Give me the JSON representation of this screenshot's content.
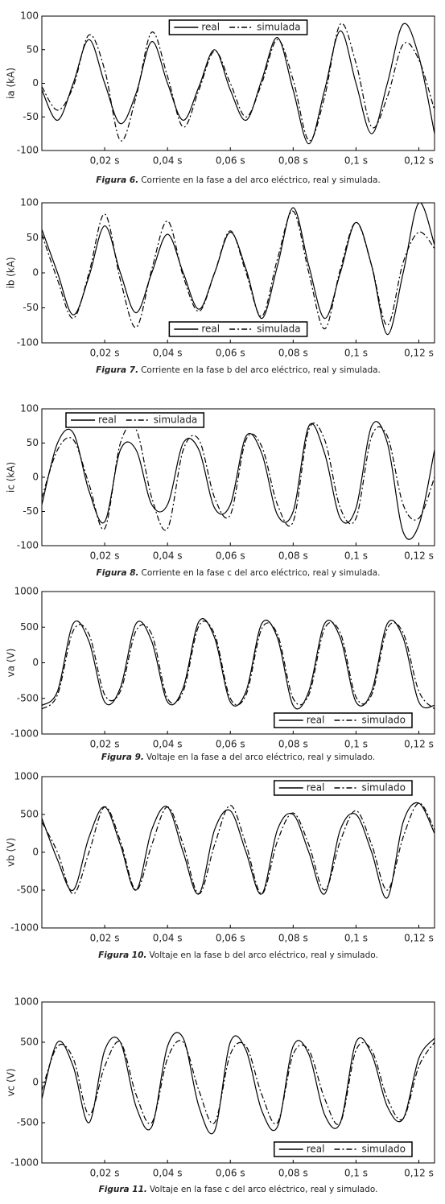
{
  "chart_data": [
    {
      "type": "line",
      "caption_label": "Figura 6.",
      "caption": "Corriente en la fase a del arco eléctrico, real y simulada.",
      "y_label": "ia (kA)",
      "legend": "top",
      "xlim": [
        0,
        0.125
      ],
      "xticks": [
        {
          "value": 0.02,
          "label": "0,02 s"
        },
        {
          "value": 0.04,
          "label": "0,04 s"
        },
        {
          "value": 0.06,
          "label": "0,06 s"
        },
        {
          "value": 0.08,
          "label": "0,08 s"
        },
        {
          "value": 0.1,
          "label": "0,1 s"
        },
        {
          "value": 0.12,
          "label": "0,12 s"
        }
      ],
      "ylim": [
        -100,
        100
      ],
      "yticks": [
        100,
        50,
        0,
        -50,
        -100
      ],
      "x": [
        0,
        0.005,
        0.01,
        0.015,
        0.02,
        0.025,
        0.03,
        0.035,
        0.04,
        0.045,
        0.05,
        0.055,
        0.06,
        0.065,
        0.07,
        0.075,
        0.08,
        0.085,
        0.09,
        0.095,
        0.1,
        0.105,
        0.11,
        0.115,
        0.12,
        0.125
      ],
      "series": [
        {
          "name": "real",
          "color": "#000000",
          "style": "solid",
          "values": [
            -10,
            -55,
            0,
            65,
            0,
            -60,
            -15,
            62,
            0,
            -55,
            -5,
            50,
            -10,
            -55,
            5,
            68,
            -10,
            -90,
            -10,
            78,
            0,
            -75,
            0,
            88,
            40,
            -75
          ]
        },
        {
          "name": "simulada",
          "color": "#000000",
          "style": "dashdot",
          "values": [
            -5,
            -40,
            -5,
            72,
            20,
            -85,
            -20,
            76,
            10,
            -65,
            -10,
            48,
            0,
            -50,
            0,
            65,
            5,
            -85,
            -20,
            88,
            30,
            -65,
            -20,
            58,
            35,
            -40
          ]
        }
      ]
    },
    {
      "type": "line",
      "caption_label": "Figura 7.",
      "caption": "Corriente en la fase b del arco eléctrico, real y simulada.",
      "y_label": "ib (kA)",
      "legend": "bottom",
      "xlim": [
        0,
        0.125
      ],
      "xticks": [
        {
          "value": 0.02,
          "label": "0,02 s"
        },
        {
          "value": 0.04,
          "label": "0,04 s"
        },
        {
          "value": 0.06,
          "label": "0,06 s"
        },
        {
          "value": 0.08,
          "label": "0,08 s"
        },
        {
          "value": 0.1,
          "label": "0,1 s"
        },
        {
          "value": 0.12,
          "label": "0,12 s"
        }
      ],
      "ylim": [
        -100,
        100
      ],
      "yticks": [
        100,
        50,
        0,
        -50,
        -100
      ],
      "x": [
        0,
        0.005,
        0.01,
        0.015,
        0.02,
        0.025,
        0.03,
        0.035,
        0.04,
        0.045,
        0.05,
        0.055,
        0.06,
        0.065,
        0.07,
        0.075,
        0.08,
        0.085,
        0.09,
        0.095,
        0.1,
        0.105,
        0.11,
        0.115,
        0.12,
        0.125
      ],
      "series": [
        {
          "name": "real",
          "color": "#000000",
          "style": "solid",
          "values": [
            62,
            0,
            -60,
            -5,
            67,
            0,
            -57,
            0,
            55,
            0,
            -52,
            0,
            58,
            5,
            -65,
            10,
            93,
            10,
            -65,
            0,
            72,
            10,
            -88,
            0,
            100,
            40
          ]
        },
        {
          "name": "simulada",
          "color": "#000000",
          "style": "dashdot",
          "values": [
            55,
            -10,
            -65,
            0,
            84,
            -10,
            -78,
            5,
            74,
            -5,
            -55,
            0,
            60,
            0,
            -62,
            20,
            88,
            0,
            -80,
            5,
            72,
            10,
            -75,
            15,
            58,
            35
          ]
        }
      ]
    },
    {
      "type": "line",
      "caption_label": "Figura 8.",
      "caption": "Corriente en la fase c del arco eléctrico, real y simulada.",
      "y_label": "ic (kA)",
      "legend": "top-left",
      "xlim": [
        0,
        0.125
      ],
      "xticks": [
        {
          "value": 0.02,
          "label": "0,02 s"
        },
        {
          "value": 0.04,
          "label": "0,04 s"
        },
        {
          "value": 0.06,
          "label": "0,06 s"
        },
        {
          "value": 0.08,
          "label": "0,08 s"
        },
        {
          "value": 0.1,
          "label": "0,1 s"
        },
        {
          "value": 0.12,
          "label": "0,12 s"
        }
      ],
      "ylim": [
        -100,
        100
      ],
      "yticks": [
        100,
        50,
        0,
        -50,
        -100
      ],
      "x": [
        0,
        0.005,
        0.01,
        0.015,
        0.02,
        0.025,
        0.03,
        0.035,
        0.04,
        0.045,
        0.05,
        0.055,
        0.06,
        0.065,
        0.07,
        0.075,
        0.08,
        0.085,
        0.09,
        0.095,
        0.1,
        0.105,
        0.11,
        0.115,
        0.12,
        0.125
      ],
      "series": [
        {
          "name": "real",
          "color": "#000000",
          "style": "solid",
          "values": [
            -40,
            50,
            65,
            -20,
            -65,
            40,
            40,
            -40,
            -40,
            50,
            40,
            -45,
            -40,
            60,
            35,
            -55,
            -50,
            75,
            35,
            -60,
            -45,
            75,
            50,
            -80,
            -70,
            40
          ]
        },
        {
          "name": "simulada",
          "color": "#000000",
          "style": "dashdot",
          "values": [
            -30,
            40,
            55,
            -10,
            -75,
            50,
            70,
            -30,
            -75,
            40,
            55,
            -30,
            -55,
            55,
            45,
            -40,
            -65,
            70,
            55,
            -45,
            -60,
            60,
            60,
            -40,
            -60,
            0
          ]
        }
      ]
    },
    {
      "type": "line",
      "caption_label": "Figura 9.",
      "caption": "Voltaje en la fase a del arco eléctrico, real y simulado.",
      "y_label": "va (V)",
      "legend": "bottom-right",
      "xlim": [
        0,
        0.125
      ],
      "xticks": [
        {
          "value": 0.02,
          "label": "0,02 s"
        },
        {
          "value": 0.04,
          "label": "0,04 s"
        },
        {
          "value": 0.06,
          "label": "0,06 s"
        },
        {
          "value": 0.08,
          "label": "0,08 s"
        },
        {
          "value": 0.1,
          "label": "0,1 s"
        },
        {
          "value": 0.12,
          "label": "0,12 s"
        }
      ],
      "ylim": [
        -1000,
        1000
      ],
      "yticks": [
        1000,
        500,
        0,
        -500,
        -1000
      ],
      "x": [
        0,
        0.005,
        0.01,
        0.015,
        0.02,
        0.025,
        0.03,
        0.035,
        0.04,
        0.045,
        0.05,
        0.055,
        0.06,
        0.065,
        0.07,
        0.075,
        0.08,
        0.085,
        0.09,
        0.095,
        0.1,
        0.105,
        0.11,
        0.115,
        0.12,
        0.125
      ],
      "series": [
        {
          "name": "real",
          "color": "#000000",
          "style": "solid",
          "values": [
            -600,
            -400,
            550,
            300,
            -550,
            -350,
            550,
            300,
            -550,
            -350,
            580,
            350,
            -550,
            -400,
            550,
            350,
            -600,
            -400,
            550,
            350,
            -550,
            -400,
            550,
            350,
            -550,
            -600
          ]
        },
        {
          "name": "simulado",
          "color": "#000000",
          "style": "dashdot",
          "values": [
            -650,
            -450,
            450,
            400,
            -450,
            -400,
            450,
            400,
            -500,
            -400,
            520,
            400,
            -500,
            -450,
            480,
            400,
            -500,
            -450,
            480,
            420,
            -480,
            -450,
            480,
            420,
            -400,
            -650
          ]
        }
      ]
    },
    {
      "type": "line",
      "caption_label": "Figura 10.",
      "caption": "Voltaje en la fase b del arco eléctrico, real y simulado.",
      "y_label": "vb (V)",
      "legend": "top-right",
      "xlim": [
        0,
        0.125
      ],
      "xticks": [
        {
          "value": 0.02,
          "label": "0,02 s"
        },
        {
          "value": 0.04,
          "label": "0,04 s"
        },
        {
          "value": 0.06,
          "label": "0,06 s"
        },
        {
          "value": 0.08,
          "label": "0,08 s"
        },
        {
          "value": 0.1,
          "label": "0,1 s"
        },
        {
          "value": 0.12,
          "label": "0,12 s"
        }
      ],
      "ylim": [
        -1000,
        1000
      ],
      "yticks": [
        1000,
        500,
        0,
        -500,
        -1000
      ],
      "x": [
        0,
        0.005,
        0.01,
        0.015,
        0.02,
        0.025,
        0.03,
        0.035,
        0.04,
        0.045,
        0.05,
        0.055,
        0.06,
        0.065,
        0.07,
        0.075,
        0.08,
        0.085,
        0.09,
        0.095,
        0.1,
        0.105,
        0.11,
        0.115,
        0.12,
        0.125
      ],
      "series": [
        {
          "name": "real",
          "color": "#000000",
          "style": "solid",
          "values": [
            450,
            -100,
            -500,
            200,
            600,
            100,
            -500,
            300,
            600,
            0,
            -550,
            300,
            550,
            0,
            -550,
            300,
            500,
            0,
            -550,
            300,
            500,
            0,
            -600,
            400,
            650,
            250
          ]
        },
        {
          "name": "simulado",
          "color": "#000000",
          "style": "dashdot",
          "values": [
            400,
            0,
            -550,
            0,
            600,
            150,
            -500,
            100,
            600,
            100,
            -550,
            100,
            620,
            100,
            -550,
            150,
            520,
            100,
            -500,
            150,
            550,
            100,
            -500,
            200,
            650,
            300
          ]
        }
      ]
    },
    {
      "type": "line",
      "caption_label": "Figura 11.",
      "caption": "Voltaje en la fase c del arco eléctrico, real y simulado.",
      "y_label": "vc (V)",
      "legend": "bottom-right",
      "xlim": [
        0,
        0.125
      ],
      "xticks": [
        {
          "value": 0.02,
          "label": "0,02 s"
        },
        {
          "value": 0.04,
          "label": "0,04 s"
        },
        {
          "value": 0.06,
          "label": "0,06 s"
        },
        {
          "value": 0.08,
          "label": "0,08 s"
        },
        {
          "value": 0.1,
          "label": "0,1 s"
        },
        {
          "value": 0.12,
          "label": "0,12 s"
        }
      ],
      "ylim": [
        -1000,
        1000
      ],
      "yticks": [
        1000,
        500,
        0,
        -500,
        -1000
      ],
      "x": [
        0,
        0.005,
        0.01,
        0.015,
        0.02,
        0.025,
        0.03,
        0.035,
        0.04,
        0.045,
        0.05,
        0.055,
        0.06,
        0.065,
        0.07,
        0.075,
        0.08,
        0.085,
        0.09,
        0.095,
        0.1,
        0.105,
        0.11,
        0.115,
        0.12,
        0.125
      ],
      "series": [
        {
          "name": "real",
          "color": "#000000",
          "style": "solid",
          "values": [
            -200,
            500,
            200,
            -500,
            400,
            500,
            -300,
            -550,
            450,
            550,
            -300,
            -600,
            500,
            400,
            -350,
            -550,
            450,
            350,
            -400,
            -500,
            500,
            350,
            -300,
            -450,
            300,
            550
          ]
        },
        {
          "name": "simulado",
          "color": "#000000",
          "style": "dashdot",
          "values": [
            -100,
            450,
            300,
            -400,
            200,
            500,
            -150,
            -500,
            300,
            500,
            -100,
            -500,
            350,
            450,
            -150,
            -500,
            350,
            400,
            -200,
            -500,
            400,
            400,
            -200,
            -450,
            200,
            500
          ]
        }
      ]
    }
  ]
}
